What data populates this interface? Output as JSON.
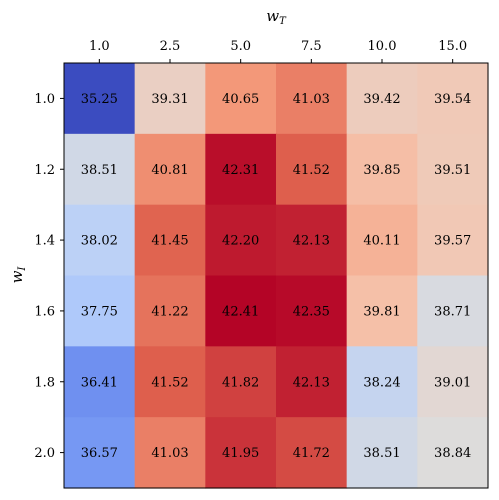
{
  "chart_data": {
    "type": "heatmap",
    "x_axis_label": "w",
    "x_axis_subscript": "T",
    "y_axis_label": "w",
    "y_axis_subscript": "I",
    "x_categories": [
      "1.0",
      "2.5",
      "5.0",
      "7.5",
      "10.0",
      "15.0"
    ],
    "y_categories": [
      "1.0",
      "1.2",
      "1.4",
      "1.6",
      "1.8",
      "2.0"
    ],
    "values": [
      [
        "35.25",
        "39.31",
        "40.65",
        "41.03",
        "39.42",
        "39.54"
      ],
      [
        "38.51",
        "40.81",
        "42.31",
        "41.52",
        "39.85",
        "39.51"
      ],
      [
        "38.02",
        "41.45",
        "42.20",
        "42.13",
        "40.11",
        "39.57"
      ],
      [
        "37.75",
        "41.22",
        "42.41",
        "42.35",
        "39.81",
        "38.71"
      ],
      [
        "36.41",
        "41.52",
        "41.82",
        "42.13",
        "38.24",
        "39.01"
      ],
      [
        "36.57",
        "41.03",
        "41.95",
        "41.72",
        "38.51",
        "38.84"
      ]
    ],
    "colormap": "coolwarm",
    "value_range": [
      35.25,
      42.41
    ],
    "x_ticks_position": "top",
    "grid": false
  }
}
